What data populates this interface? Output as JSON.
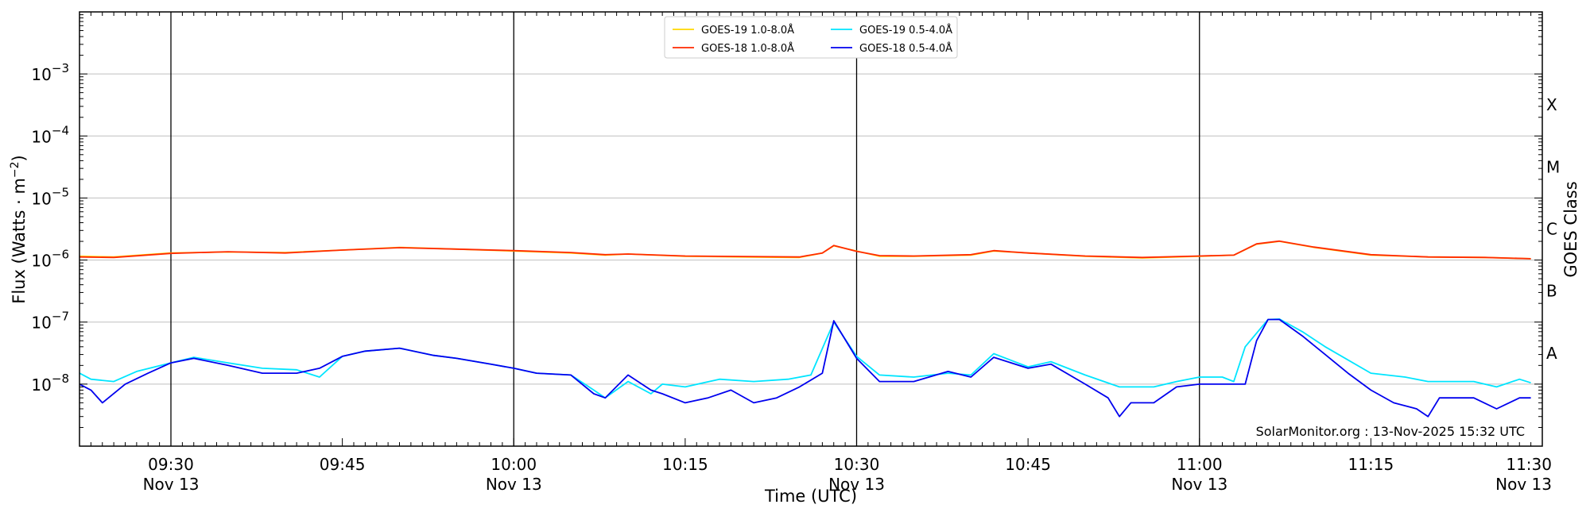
{
  "chart_data": {
    "type": "line",
    "xlabel": "Time (UTC)",
    "ylabel": "Flux (Watts · m",
    "ylabel_sup": "−2",
    "ylabel_close": ")",
    "right_axis_label": "GOES Class",
    "credit": "SolarMonitor.org : 13-Nov-2025 15:32 UTC",
    "x_range": [
      "09:22",
      "11:30"
    ],
    "y_scale": "log",
    "ylim": [
      1e-09,
      0.01
    ],
    "grid": "horizontal at decades",
    "legend_placement": "top-center",
    "x_ticks": [
      {
        "time": "09:30",
        "label": "09:30",
        "sublabel": "Nov 13"
      },
      {
        "time": "09:45",
        "label": "09:45",
        "sublabel": ""
      },
      {
        "time": "10:00",
        "label": "10:00",
        "sublabel": "Nov 13"
      },
      {
        "time": "10:15",
        "label": "10:15",
        "sublabel": ""
      },
      {
        "time": "10:30",
        "label": "10:30",
        "sublabel": "Nov 13"
      },
      {
        "time": "10:45",
        "label": "10:45",
        "sublabel": ""
      },
      {
        "time": "11:00",
        "label": "11:00",
        "sublabel": "Nov 13"
      },
      {
        "time": "11:15",
        "label": "11:15",
        "sublabel": ""
      },
      {
        "time": "11:30",
        "label": "11:30",
        "sublabel": "Nov 13"
      }
    ],
    "vertical_lines": [
      "09:30",
      "10:00",
      "10:30",
      "11:00"
    ],
    "y_ticks": [
      {
        "exp": -3,
        "label": "10",
        "sup": "−3"
      },
      {
        "exp": -4,
        "label": "10",
        "sup": "−4"
      },
      {
        "exp": -5,
        "label": "10",
        "sup": "−5"
      },
      {
        "exp": -6,
        "label": "10",
        "sup": "−6"
      },
      {
        "exp": -7,
        "label": "10",
        "sup": "−7"
      },
      {
        "exp": -8,
        "label": "10",
        "sup": "−8"
      }
    ],
    "goes_classes": [
      {
        "label": "X",
        "exp": -3.5
      },
      {
        "label": "M",
        "exp": -4.5
      },
      {
        "label": "C",
        "exp": -5.5
      },
      {
        "label": "B",
        "exp": -6.5
      },
      {
        "label": "A",
        "exp": -7.5
      }
    ],
    "series": [
      {
        "name": "GOES-19 1.0-8.0Å",
        "color": "#ffd700",
        "points": [
          [
            "09:22",
            1.15e-06
          ],
          [
            "09:25",
            1.12e-06
          ],
          [
            "09:30",
            1.3e-06
          ],
          [
            "09:35",
            1.35e-06
          ],
          [
            "09:40",
            1.32e-06
          ],
          [
            "09:45",
            1.45e-06
          ],
          [
            "09:50",
            1.6e-06
          ],
          [
            "09:55",
            1.5e-06
          ],
          [
            "10:00",
            1.4e-06
          ],
          [
            "10:05",
            1.3e-06
          ],
          [
            "10:08",
            1.2e-06
          ],
          [
            "10:10",
            1.25e-06
          ],
          [
            "10:15",
            1.15e-06
          ],
          [
            "10:20",
            1.12e-06
          ],
          [
            "10:25",
            1.1e-06
          ],
          [
            "10:27",
            1.3e-06
          ],
          [
            "10:28",
            1.7e-06
          ],
          [
            "10:30",
            1.4e-06
          ],
          [
            "10:32",
            1.15e-06
          ],
          [
            "10:35",
            1.15e-06
          ],
          [
            "10:40",
            1.2e-06
          ],
          [
            "10:42",
            1.4e-06
          ],
          [
            "10:45",
            1.3e-06
          ],
          [
            "10:50",
            1.15e-06
          ],
          [
            "10:55",
            1.08e-06
          ],
          [
            "11:00",
            1.15e-06
          ],
          [
            "11:03",
            1.2e-06
          ],
          [
            "11:05",
            1.8e-06
          ],
          [
            "11:07",
            2e-06
          ],
          [
            "11:10",
            1.6e-06
          ],
          [
            "11:15",
            1.2e-06
          ],
          [
            "11:20",
            1.12e-06
          ],
          [
            "11:25",
            1.1e-06
          ],
          [
            "11:29",
            1.05e-06
          ]
        ]
      },
      {
        "name": "GOES-18 1.0-8.0Å",
        "color": "#ff2a00",
        "points": [
          [
            "09:22",
            1.12e-06
          ],
          [
            "09:25",
            1.1e-06
          ],
          [
            "09:30",
            1.28e-06
          ],
          [
            "09:35",
            1.36e-06
          ],
          [
            "09:40",
            1.3e-06
          ],
          [
            "09:45",
            1.45e-06
          ],
          [
            "09:50",
            1.58e-06
          ],
          [
            "09:55",
            1.5e-06
          ],
          [
            "10:00",
            1.42e-06
          ],
          [
            "10:05",
            1.32e-06
          ],
          [
            "10:08",
            1.22e-06
          ],
          [
            "10:10",
            1.25e-06
          ],
          [
            "10:15",
            1.16e-06
          ],
          [
            "10:20",
            1.14e-06
          ],
          [
            "10:25",
            1.12e-06
          ],
          [
            "10:27",
            1.3e-06
          ],
          [
            "10:28",
            1.72e-06
          ],
          [
            "10:30",
            1.38e-06
          ],
          [
            "10:32",
            1.18e-06
          ],
          [
            "10:35",
            1.16e-06
          ],
          [
            "10:40",
            1.22e-06
          ],
          [
            "10:42",
            1.42e-06
          ],
          [
            "10:45",
            1.3e-06
          ],
          [
            "10:50",
            1.16e-06
          ],
          [
            "10:55",
            1.1e-06
          ],
          [
            "11:00",
            1.16e-06
          ],
          [
            "11:03",
            1.2e-06
          ],
          [
            "11:05",
            1.82e-06
          ],
          [
            "11:07",
            2.02e-06
          ],
          [
            "11:10",
            1.62e-06
          ],
          [
            "11:15",
            1.22e-06
          ],
          [
            "11:20",
            1.12e-06
          ],
          [
            "11:25",
            1.1e-06
          ],
          [
            "11:29",
            1.05e-06
          ]
        ]
      },
      {
        "name": "GOES-19 0.5-4.0Å",
        "color": "#00e5ff",
        "points": [
          [
            "09:22",
            1.5e-08
          ],
          [
            "09:23",
            1.2e-08
          ],
          [
            "09:25",
            1.1e-08
          ],
          [
            "09:27",
            1.6e-08
          ],
          [
            "09:30",
            2.2e-08
          ],
          [
            "09:32",
            2.7e-08
          ],
          [
            "09:35",
            2.2e-08
          ],
          [
            "09:38",
            1.8e-08
          ],
          [
            "09:41",
            1.7e-08
          ],
          [
            "09:43",
            1.3e-08
          ],
          [
            "09:45",
            2.8e-08
          ],
          [
            "09:47",
            3.4e-08
          ],
          [
            "09:50",
            3.8e-08
          ],
          [
            "09:53",
            2.9e-08
          ],
          [
            "09:55",
            2.6e-08
          ],
          [
            "09:58",
            2.1e-08
          ],
          [
            "10:00",
            1.8e-08
          ],
          [
            "10:02",
            1.5e-08
          ],
          [
            "10:05",
            1.4e-08
          ],
          [
            "10:07",
            8e-09
          ],
          [
            "10:08",
            6e-09
          ],
          [
            "10:10",
            1.1e-08
          ],
          [
            "10:12",
            7e-09
          ],
          [
            "10:13",
            1e-08
          ],
          [
            "10:15",
            9e-09
          ],
          [
            "10:18",
            1.2e-08
          ],
          [
            "10:21",
            1.1e-08
          ],
          [
            "10:24",
            1.2e-08
          ],
          [
            "10:26",
            1.4e-08
          ],
          [
            "10:28",
            1e-07
          ],
          [
            "10:30",
            2.8e-08
          ],
          [
            "10:32",
            1.4e-08
          ],
          [
            "10:35",
            1.3e-08
          ],
          [
            "10:38",
            1.5e-08
          ],
          [
            "10:40",
            1.4e-08
          ],
          [
            "10:42",
            3.1e-08
          ],
          [
            "10:45",
            1.9e-08
          ],
          [
            "10:47",
            2.3e-08
          ],
          [
            "10:50",
            1.4e-08
          ],
          [
            "10:53",
            9e-09
          ],
          [
            "10:56",
            9e-09
          ],
          [
            "10:58",
            1.1e-08
          ],
          [
            "11:00",
            1.3e-08
          ],
          [
            "11:02",
            1.3e-08
          ],
          [
            "11:03",
            1.1e-08
          ],
          [
            "11:04",
            4e-08
          ],
          [
            "11:06",
            1.1e-07
          ],
          [
            "11:07",
            1.12e-07
          ],
          [
            "11:09",
            7e-08
          ],
          [
            "11:11",
            4e-08
          ],
          [
            "11:15",
            1.5e-08
          ],
          [
            "11:18",
            1.3e-08
          ],
          [
            "11:20",
            1.1e-08
          ],
          [
            "11:24",
            1.1e-08
          ],
          [
            "11:26",
            9e-09
          ],
          [
            "11:28",
            1.2e-08
          ],
          [
            "11:29",
            1.05e-08
          ]
        ]
      },
      {
        "name": "GOES-18 0.5-4.0Å",
        "color": "#0000ee",
        "points": [
          [
            "09:22",
            1e-08
          ],
          [
            "09:23",
            8e-09
          ],
          [
            "09:24",
            5e-09
          ],
          [
            "09:26",
            1e-08
          ],
          [
            "09:28",
            1.5e-08
          ],
          [
            "09:30",
            2.2e-08
          ],
          [
            "09:32",
            2.6e-08
          ],
          [
            "09:35",
            2e-08
          ],
          [
            "09:38",
            1.5e-08
          ],
          [
            "09:41",
            1.5e-08
          ],
          [
            "09:43",
            1.8e-08
          ],
          [
            "09:45",
            2.8e-08
          ],
          [
            "09:47",
            3.4e-08
          ],
          [
            "09:50",
            3.8e-08
          ],
          [
            "09:53",
            2.9e-08
          ],
          [
            "09:55",
            2.6e-08
          ],
          [
            "09:58",
            2.1e-08
          ],
          [
            "10:00",
            1.8e-08
          ],
          [
            "10:02",
            1.5e-08
          ],
          [
            "10:05",
            1.4e-08
          ],
          [
            "10:07",
            7e-09
          ],
          [
            "10:08",
            6e-09
          ],
          [
            "10:10",
            1.4e-08
          ],
          [
            "10:12",
            8e-09
          ],
          [
            "10:13",
            7e-09
          ],
          [
            "10:15",
            5e-09
          ],
          [
            "10:17",
            6e-09
          ],
          [
            "10:19",
            8e-09
          ],
          [
            "10:21",
            5e-09
          ],
          [
            "10:23",
            6e-09
          ],
          [
            "10:25",
            9e-09
          ],
          [
            "10:27",
            1.5e-08
          ],
          [
            "10:28",
            1.05e-07
          ],
          [
            "10:30",
            2.6e-08
          ],
          [
            "10:32",
            1.1e-08
          ],
          [
            "10:35",
            1.1e-08
          ],
          [
            "10:38",
            1.6e-08
          ],
          [
            "10:40",
            1.3e-08
          ],
          [
            "10:42",
            2.7e-08
          ],
          [
            "10:45",
            1.8e-08
          ],
          [
            "10:47",
            2.1e-08
          ],
          [
            "10:50",
            1e-08
          ],
          [
            "10:52",
            6e-09
          ],
          [
            "10:53",
            3e-09
          ],
          [
            "10:54",
            5e-09
          ],
          [
            "10:56",
            5e-09
          ],
          [
            "10:58",
            9e-09
          ],
          [
            "11:00",
            1e-08
          ],
          [
            "11:02",
            1e-08
          ],
          [
            "11:04",
            1e-08
          ],
          [
            "11:05",
            5e-08
          ],
          [
            "11:06",
            1.1e-07
          ],
          [
            "11:07",
            1.1e-07
          ],
          [
            "11:09",
            6e-08
          ],
          [
            "11:11",
            3e-08
          ],
          [
            "11:13",
            1.5e-08
          ],
          [
            "11:15",
            8e-09
          ],
          [
            "11:17",
            5e-09
          ],
          [
            "11:19",
            4e-09
          ],
          [
            "11:20",
            3e-09
          ],
          [
            "11:21",
            6e-09
          ],
          [
            "11:24",
            6e-09
          ],
          [
            "11:26",
            4e-09
          ],
          [
            "11:28",
            6e-09
          ],
          [
            "11:29",
            6e-09
          ]
        ]
      }
    ]
  }
}
